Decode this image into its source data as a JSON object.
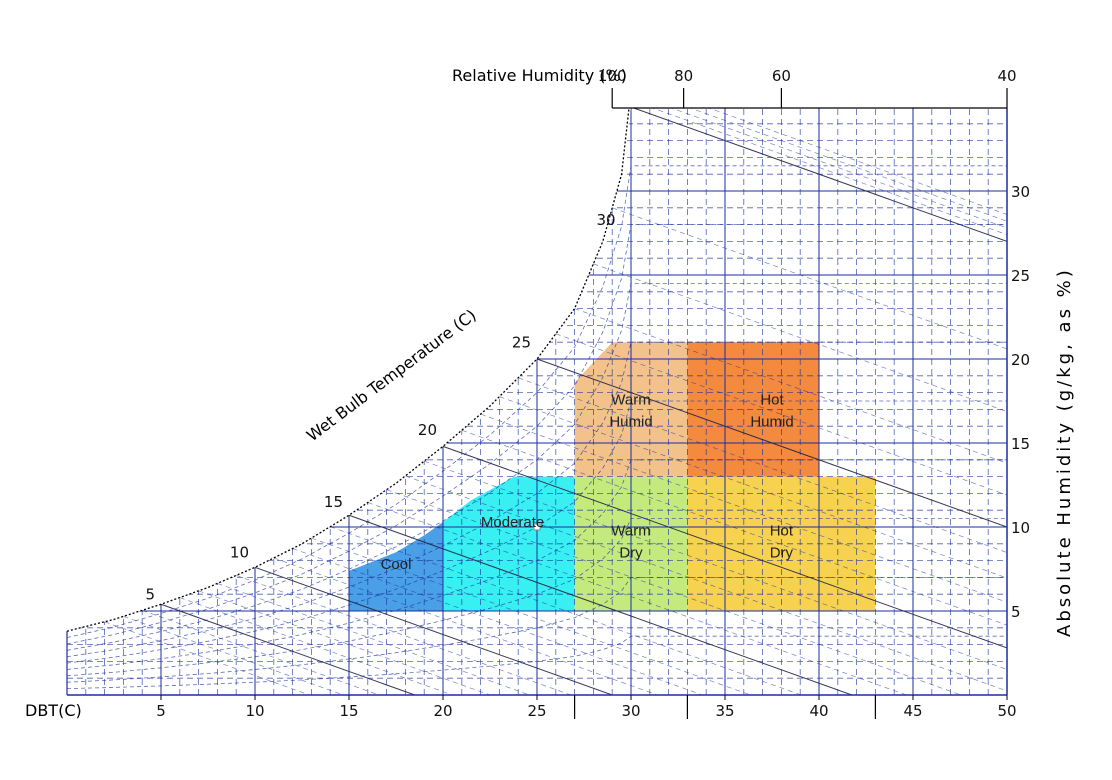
{
  "chart_data": {
    "type": "psychrometric",
    "xlabel": "DBT(C)",
    "ylabel": "Absolute Humidity (g/kg, as %)",
    "wetbulb_label": "Wet Bulb Temperature (C)",
    "rh_label": "Relative Humidity (%)",
    "xlim": [
      0,
      50
    ],
    "ylim": [
      0,
      35
    ],
    "x_ticks": [
      5,
      10,
      15,
      20,
      25,
      30,
      35,
      40,
      45,
      50
    ],
    "y_ticks": [
      5,
      10,
      15,
      20,
      25,
      30
    ],
    "rh_ticks": [
      {
        "label": "100",
        "x": 29
      },
      {
        "label": "80",
        "x": 32.8
      },
      {
        "label": "60",
        "x": 38
      },
      {
        "label": "40",
        "x": 50
      }
    ],
    "wetbulb_ticks": [
      {
        "label": "5",
        "x": 5,
        "y": 5.2
      },
      {
        "label": "10",
        "x": 10,
        "y": 7.7
      },
      {
        "label": "15",
        "x": 15,
        "y": 10.7
      },
      {
        "label": "20",
        "x": 20,
        "y": 15
      },
      {
        "label": "25",
        "x": 25,
        "y": 20.2
      },
      {
        "label": "30",
        "x": 29.5,
        "y": 27.5
      }
    ],
    "zone_separators_x": [
      27,
      33,
      43
    ],
    "zones": [
      {
        "name": "Cool",
        "label_lines": [
          "Cool"
        ],
        "color": "#4aa0e6",
        "label_x": 17.5,
        "label_y": 7.5,
        "polygon": [
          [
            15,
            5
          ],
          [
            20,
            5
          ],
          [
            20,
            10.3
          ],
          [
            19,
            9.5
          ],
          [
            17.5,
            8.5
          ],
          [
            15.5,
            7.6
          ],
          [
            15,
            7.4
          ]
        ]
      },
      {
        "name": "Moderate",
        "label_lines": [
          "Moderate"
        ],
        "color": "#38f0f2",
        "label_x": 23.7,
        "label_y": 10,
        "polygon": [
          [
            20,
            5
          ],
          [
            27,
            5
          ],
          [
            27,
            13
          ],
          [
            23.8,
            13
          ],
          [
            21.5,
            11.6
          ],
          [
            20,
            10.3
          ]
        ]
      },
      {
        "name": "Warm Dry",
        "label_lines": [
          "Warm",
          "Dry"
        ],
        "color": "#c4ea7e",
        "label_x": 30,
        "label_y": 9.5,
        "polygon": [
          [
            27,
            5
          ],
          [
            33,
            5
          ],
          [
            33,
            13
          ],
          [
            27,
            13
          ]
        ]
      },
      {
        "name": "Hot Dry",
        "label_lines": [
          "Hot",
          "Dry"
        ],
        "color": "#f6d24e",
        "label_x": 38,
        "label_y": 9.5,
        "polygon": [
          [
            33,
            5
          ],
          [
            43,
            5
          ],
          [
            43,
            13
          ],
          [
            33,
            13
          ]
        ]
      },
      {
        "name": "Warm Humid",
        "label_lines": [
          "Warm",
          "Humid"
        ],
        "color": "#f3c28a",
        "label_x": 30,
        "label_y": 17.3,
        "polygon": [
          [
            27,
            13
          ],
          [
            33,
            13
          ],
          [
            33,
            21
          ],
          [
            29,
            21
          ],
          [
            27,
            18.6
          ]
        ]
      },
      {
        "name": "Hot Humid",
        "label_lines": [
          "Hot",
          "Humid"
        ],
        "color": "#f48a3e",
        "label_x": 37.5,
        "label_y": 17.3,
        "polygon": [
          [
            33,
            13
          ],
          [
            40,
            13
          ],
          [
            40,
            21
          ],
          [
            33,
            21
          ]
        ]
      }
    ],
    "saturation_curve": [
      [
        0,
        3.8
      ],
      [
        2.5,
        4.5
      ],
      [
        5,
        5.4
      ],
      [
        7.5,
        6.4
      ],
      [
        10,
        7.6
      ],
      [
        12.5,
        9.0
      ],
      [
        15,
        10.7
      ],
      [
        17.5,
        12.6
      ],
      [
        20,
        14.8
      ],
      [
        22.5,
        17.2
      ],
      [
        25,
        20.0
      ],
      [
        27,
        23.0
      ],
      [
        28.5,
        27.0
      ],
      [
        29.5,
        31.0
      ],
      [
        29.9,
        35.0
      ]
    ],
    "marker": {
      "x": 25,
      "y": 10
    },
    "grid": true,
    "colors": {
      "grid": "#1a2f9e",
      "curve": "#000000"
    }
  }
}
